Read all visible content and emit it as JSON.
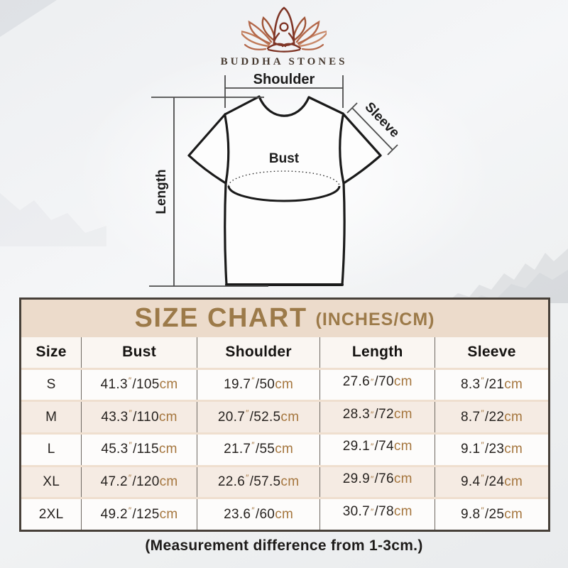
{
  "brand": {
    "name": "BUDDHA STONES",
    "logo": "lotus-meditation-icon",
    "logo_color_dark": "#7f3526",
    "logo_color_light": "#c8896a"
  },
  "diagram": {
    "labels": {
      "shoulder": "Shoulder",
      "sleeve": "Sleeve",
      "bust": "Bust",
      "length": "Length"
    }
  },
  "size_chart": {
    "title": "SIZE CHART",
    "title_suffix": "(INCHES/CM)",
    "title_color": "#9c7a49",
    "band_color": "#ecdbcb",
    "unit_color": "#a5763e",
    "inch_mark": "″",
    "slash": "/",
    "cm_label": "cm",
    "columns": [
      "Size",
      "Bust",
      "Shoulder",
      "Length",
      "Sleeve"
    ],
    "rows": [
      {
        "size": "S",
        "measurements": [
          {
            "in": "41.3",
            "cm": "105"
          },
          {
            "in": "19.7",
            "cm": "50"
          },
          {
            "in": "27.6",
            "cm": "70"
          },
          {
            "in": "8.3",
            "cm": "21"
          }
        ]
      },
      {
        "size": "M",
        "measurements": [
          {
            "in": "43.3",
            "cm": "110"
          },
          {
            "in": "20.7",
            "cm": "52.5"
          },
          {
            "in": "28.3",
            "cm": "72"
          },
          {
            "in": "8.7",
            "cm": "22"
          }
        ]
      },
      {
        "size": "L",
        "measurements": [
          {
            "in": "45.3",
            "cm": "115"
          },
          {
            "in": "21.7",
            "cm": "55"
          },
          {
            "in": "29.1",
            "cm": "74"
          },
          {
            "in": "9.1",
            "cm": "23"
          }
        ]
      },
      {
        "size": "XL",
        "measurements": [
          {
            "in": "47.2",
            "cm": "120"
          },
          {
            "in": "22.6",
            "cm": "57.5"
          },
          {
            "in": "29.9",
            "cm": "76"
          },
          {
            "in": "9.4",
            "cm": "24"
          }
        ]
      },
      {
        "size": "2XL",
        "measurements": [
          {
            "in": "49.2",
            "cm": "125"
          },
          {
            "in": "23.6",
            "cm": "60"
          },
          {
            "in": "30.7",
            "cm": "78"
          },
          {
            "in": "9.8",
            "cm": "25"
          }
        ]
      }
    ]
  },
  "footnote": "(Measurement difference from 1-3cm.)",
  "chart_data": {
    "type": "table",
    "title": "SIZE CHART (INCHES/CM)",
    "columns": [
      "Size",
      "Bust",
      "Shoulder",
      "Length",
      "Sleeve"
    ],
    "rows": [
      [
        "S",
        "41.3″/105cm",
        "19.7″/50cm",
        "27.6″/70cm",
        "8.3″/21cm"
      ],
      [
        "M",
        "43.3″/110cm",
        "20.7″/52.5cm",
        "28.3″/72cm",
        "8.7″/22cm"
      ],
      [
        "L",
        "45.3″/115cm",
        "21.7″/55cm",
        "29.1″/74cm",
        "9.1″/23cm"
      ],
      [
        "XL",
        "47.2″/120cm",
        "22.6″/57.5cm",
        "29.9″/76cm",
        "9.4″/24cm"
      ],
      [
        "2XL",
        "49.2″/125cm",
        "23.6″/60cm",
        "30.7″/78cm",
        "9.8″/25cm"
      ]
    ]
  }
}
